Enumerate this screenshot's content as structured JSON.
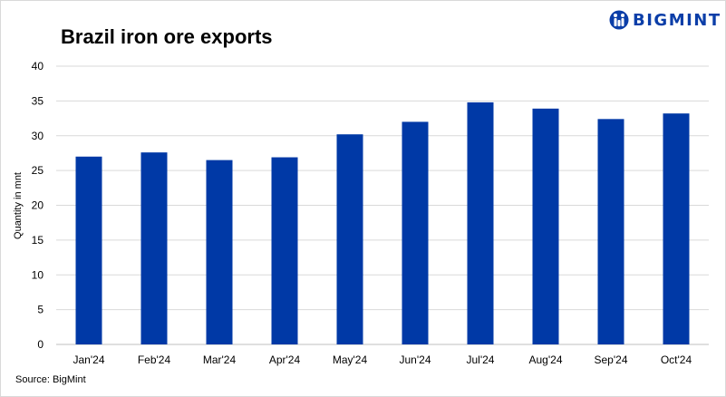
{
  "brand": {
    "name": "BIGMINT",
    "color": "#0b3ea8",
    "logo_icon": "bigmint-logo-icon"
  },
  "source_text": "Source: BigMint",
  "chart_data": {
    "type": "bar",
    "title": "Brazil iron ore exports",
    "xlabel": "",
    "ylabel": "Quantity in mnt",
    "categories": [
      "Jan'24",
      "Feb'24",
      "Mar'24",
      "Apr'24",
      "May'24",
      "Jun'24",
      "Jul'24",
      "Aug'24",
      "Sep'24",
      "Oct'24"
    ],
    "values": [
      27.0,
      27.6,
      26.5,
      26.9,
      30.2,
      32.0,
      34.8,
      33.9,
      32.4,
      33.2
    ],
    "ylim": [
      0,
      40
    ],
    "yticks": [
      0,
      5,
      10,
      15,
      20,
      25,
      30,
      35,
      40
    ],
    "grid": true,
    "bar_color": "#0039a6",
    "grid_color": "#d9d9d9"
  }
}
